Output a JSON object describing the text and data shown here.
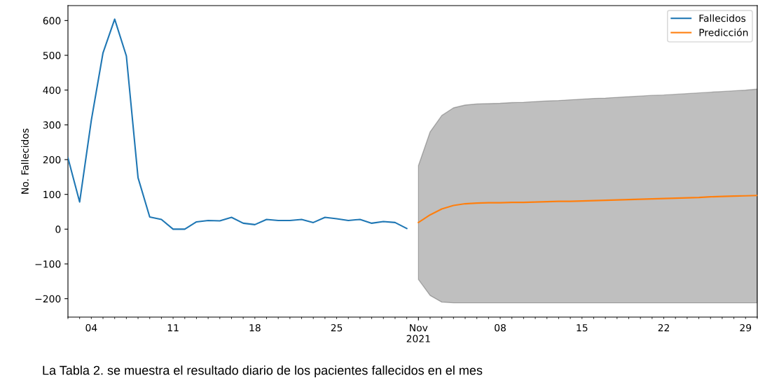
{
  "chart_data": {
    "type": "line",
    "ylabel": "No. Fallecidos",
    "xlim": [
      "2021-10-02",
      "2021-11-30"
    ],
    "ylim": [
      -253,
      643
    ],
    "yticks": [
      {
        "value": -200,
        "label": "−200"
      },
      {
        "value": -100,
        "label": "−100"
      },
      0,
      100,
      200,
      300,
      400,
      500,
      600
    ],
    "xticks": [
      {
        "value": "2021-10-02",
        "label": null
      },
      {
        "value": "2021-10-03",
        "label": null
      },
      {
        "value": "2021-10-04",
        "label": "04"
      },
      {
        "value": "2021-10-05",
        "label": null
      },
      {
        "value": "2021-10-06",
        "label": null
      },
      {
        "value": "2021-10-07",
        "label": null
      },
      {
        "value": "2021-10-08",
        "label": null
      },
      {
        "value": "2021-10-09",
        "label": null
      },
      {
        "value": "2021-10-10",
        "label": null
      },
      {
        "value": "2021-10-11",
        "label": "11"
      },
      {
        "value": "2021-10-12",
        "label": null
      },
      {
        "value": "2021-10-13",
        "label": null
      },
      {
        "value": "2021-10-14",
        "label": null
      },
      {
        "value": "2021-10-15",
        "label": null
      },
      {
        "value": "2021-10-16",
        "label": null
      },
      {
        "value": "2021-10-17",
        "label": null
      },
      {
        "value": "2021-10-18",
        "label": "18"
      },
      {
        "value": "2021-10-19",
        "label": null
      },
      {
        "value": "2021-10-20",
        "label": null
      },
      {
        "value": "2021-10-21",
        "label": null
      },
      {
        "value": "2021-10-22",
        "label": null
      },
      {
        "value": "2021-10-23",
        "label": null
      },
      {
        "value": "2021-10-24",
        "label": null
      },
      {
        "value": "2021-10-25",
        "label": "25"
      },
      {
        "value": "2021-10-26",
        "label": null
      },
      {
        "value": "2021-10-27",
        "label": null
      },
      {
        "value": "2021-10-28",
        "label": null
      },
      {
        "value": "2021-10-29",
        "label": null
      },
      {
        "value": "2021-10-30",
        "label": null
      },
      {
        "value": "2021-10-31",
        "label": null
      },
      {
        "value": "2021-11-01",
        "label": "Nov\n2021"
      },
      {
        "value": "2021-11-02",
        "label": null
      },
      {
        "value": "2021-11-03",
        "label": null
      },
      {
        "value": "2021-11-04",
        "label": null
      },
      {
        "value": "2021-11-05",
        "label": null
      },
      {
        "value": "2021-11-06",
        "label": null
      },
      {
        "value": "2021-11-07",
        "label": null
      },
      {
        "value": "2021-11-08",
        "label": "08"
      },
      {
        "value": "2021-11-09",
        "label": null
      },
      {
        "value": "2021-11-10",
        "label": null
      },
      {
        "value": "2021-11-11",
        "label": null
      },
      {
        "value": "2021-11-12",
        "label": null
      },
      {
        "value": "2021-11-13",
        "label": null
      },
      {
        "value": "2021-11-14",
        "label": null
      },
      {
        "value": "2021-11-15",
        "label": "15"
      },
      {
        "value": "2021-11-16",
        "label": null
      },
      {
        "value": "2021-11-17",
        "label": null
      },
      {
        "value": "2021-11-18",
        "label": null
      },
      {
        "value": "2021-11-19",
        "label": null
      },
      {
        "value": "2021-11-20",
        "label": null
      },
      {
        "value": "2021-11-21",
        "label": null
      },
      {
        "value": "2021-11-22",
        "label": "22"
      },
      {
        "value": "2021-11-23",
        "label": null
      },
      {
        "value": "2021-11-24",
        "label": null
      },
      {
        "value": "2021-11-25",
        "label": null
      },
      {
        "value": "2021-11-26",
        "label": null
      },
      {
        "value": "2021-11-27",
        "label": null
      },
      {
        "value": "2021-11-28",
        "label": null
      },
      {
        "value": "2021-11-29",
        "label": "29"
      },
      {
        "value": "2021-11-30",
        "label": null
      }
    ],
    "series": [
      {
        "name": "Fallecidos",
        "color": "#1f77b4",
        "x": [
          "2021-10-02",
          "2021-10-03",
          "2021-10-04",
          "2021-10-05",
          "2021-10-06",
          "2021-10-07",
          "2021-10-08",
          "2021-10-09",
          "2021-10-10",
          "2021-10-11",
          "2021-10-12",
          "2021-10-13",
          "2021-10-14",
          "2021-10-15",
          "2021-10-16",
          "2021-10-17",
          "2021-10-18",
          "2021-10-19",
          "2021-10-20",
          "2021-10-21",
          "2021-10-22",
          "2021-10-23",
          "2021-10-24",
          "2021-10-25",
          "2021-10-26",
          "2021-10-27",
          "2021-10-28",
          "2021-10-29",
          "2021-10-30",
          "2021-10-31"
        ],
        "values": [
          205,
          78,
          313,
          507,
          604,
          498,
          148,
          35,
          28,
          0,
          0,
          21,
          25,
          24,
          34,
          17,
          13,
          28,
          25,
          25,
          28,
          19,
          34,
          30,
          25,
          28,
          17,
          22,
          19,
          2
        ]
      },
      {
        "name": "Predicción",
        "color": "#ff7f0e",
        "x": [
          "2021-11-01",
          "2021-11-02",
          "2021-11-03",
          "2021-11-04",
          "2021-11-05",
          "2021-11-06",
          "2021-11-07",
          "2021-11-08",
          "2021-11-09",
          "2021-11-10",
          "2021-11-11",
          "2021-11-12",
          "2021-11-13",
          "2021-11-14",
          "2021-11-15",
          "2021-11-16",
          "2021-11-17",
          "2021-11-18",
          "2021-11-19",
          "2021-11-20",
          "2021-11-21",
          "2021-11-22",
          "2021-11-23",
          "2021-11-24",
          "2021-11-25",
          "2021-11-26",
          "2021-11-27",
          "2021-11-28",
          "2021-11-29",
          "2021-11-30"
        ],
        "values": [
          19,
          41,
          58,
          68,
          73,
          75,
          76,
          76,
          77,
          77,
          78,
          79,
          80,
          80,
          81,
          82,
          83,
          84,
          85,
          86,
          87,
          88,
          89,
          90,
          91,
          93,
          94,
          95,
          96,
          97
        ],
        "lower": [
          -145,
          -191,
          -210,
          -212,
          -212,
          -212,
          -212,
          -212,
          -212,
          -212,
          -212,
          -212,
          -212,
          -212,
          -212,
          -212,
          -212,
          -212,
          -212,
          -212,
          -212,
          -212,
          -212,
          -212,
          -212,
          -212,
          -212,
          -212,
          -212,
          -212
        ],
        "upper": [
          183,
          280,
          327,
          349,
          357,
          360,
          361,
          362,
          364,
          365,
          367,
          369,
          370,
          372,
          374,
          376,
          377,
          379,
          381,
          383,
          385,
          386,
          388,
          390,
          392,
          394,
          396,
          398,
          400,
          403
        ]
      }
    ],
    "legend": "top right",
    "grid": false,
    "marker": "none",
    "line_style": "solid",
    "annotations": [
      "La Tabla 2. se muestra el resultado diario de los pacientes fallecidos en el mes"
    ]
  }
}
